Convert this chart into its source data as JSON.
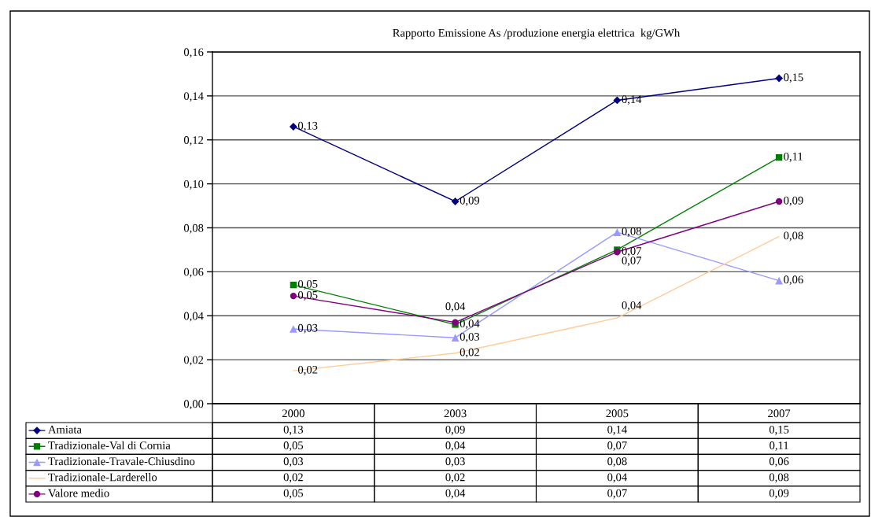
{
  "chart_data": {
    "type": "line",
    "title": "Rapporto Emissione As /produzione energia elettrica  kg/GWh",
    "categories": [
      "2000",
      "2003",
      "2005",
      "2007"
    ],
    "series": [
      {
        "name": "Amiata",
        "color": "#000080",
        "marker": "diamond",
        "values": [
          0.126,
          0.092,
          0.138,
          0.148
        ],
        "value_labels": [
          "0,13",
          "0,09",
          "0,14",
          "0,15"
        ]
      },
      {
        "name": "Tradizionale-Val di Cornia",
        "color": "#008000",
        "marker": "square",
        "values": [
          0.054,
          0.036,
          0.07,
          0.112
        ],
        "value_labels": [
          "0,05",
          "0,04",
          "0,07",
          "0,11"
        ]
      },
      {
        "name": "Tradizionale-Travale-Chiusdino",
        "color": "#9999ff",
        "marker": "triangle",
        "values": [
          0.034,
          0.03,
          0.078,
          0.056
        ],
        "value_labels": [
          "0,03",
          "0,03",
          "0,08",
          "0,06"
        ]
      },
      {
        "name": "Tradizionale-Larderello",
        "color": "#ffcc99",
        "marker": "none",
        "values": [
          0.015,
          0.023,
          0.039,
          0.076
        ],
        "value_labels": [
          "0,02",
          "0,02",
          "0,04",
          "0,08"
        ]
      },
      {
        "name": "Valore medio",
        "color": "#800080",
        "marker": "circle",
        "values": [
          0.049,
          0.037,
          0.069,
          0.092
        ],
        "value_labels": [
          "0,05",
          "0,04",
          "0,07",
          "0,09"
        ]
      }
    ],
    "ylim": [
      0,
      0.16
    ],
    "yticks": [
      {
        "value": 0,
        "label": "0,00"
      },
      {
        "value": 0.02,
        "label": "0,02"
      },
      {
        "value": 0.04,
        "label": "0,04"
      },
      {
        "value": 0.06,
        "label": "0,06"
      },
      {
        "value": 0.08,
        "label": "0,08"
      },
      {
        "value": 0.1,
        "label": "0,10"
      },
      {
        "value": 0.12,
        "label": "0,12"
      },
      {
        "value": 0.14,
        "label": "0,14"
      },
      {
        "value": 0.16,
        "label": "0,16"
      }
    ],
    "grid": "y",
    "legend": "bottom",
    "line_style": "solid"
  }
}
